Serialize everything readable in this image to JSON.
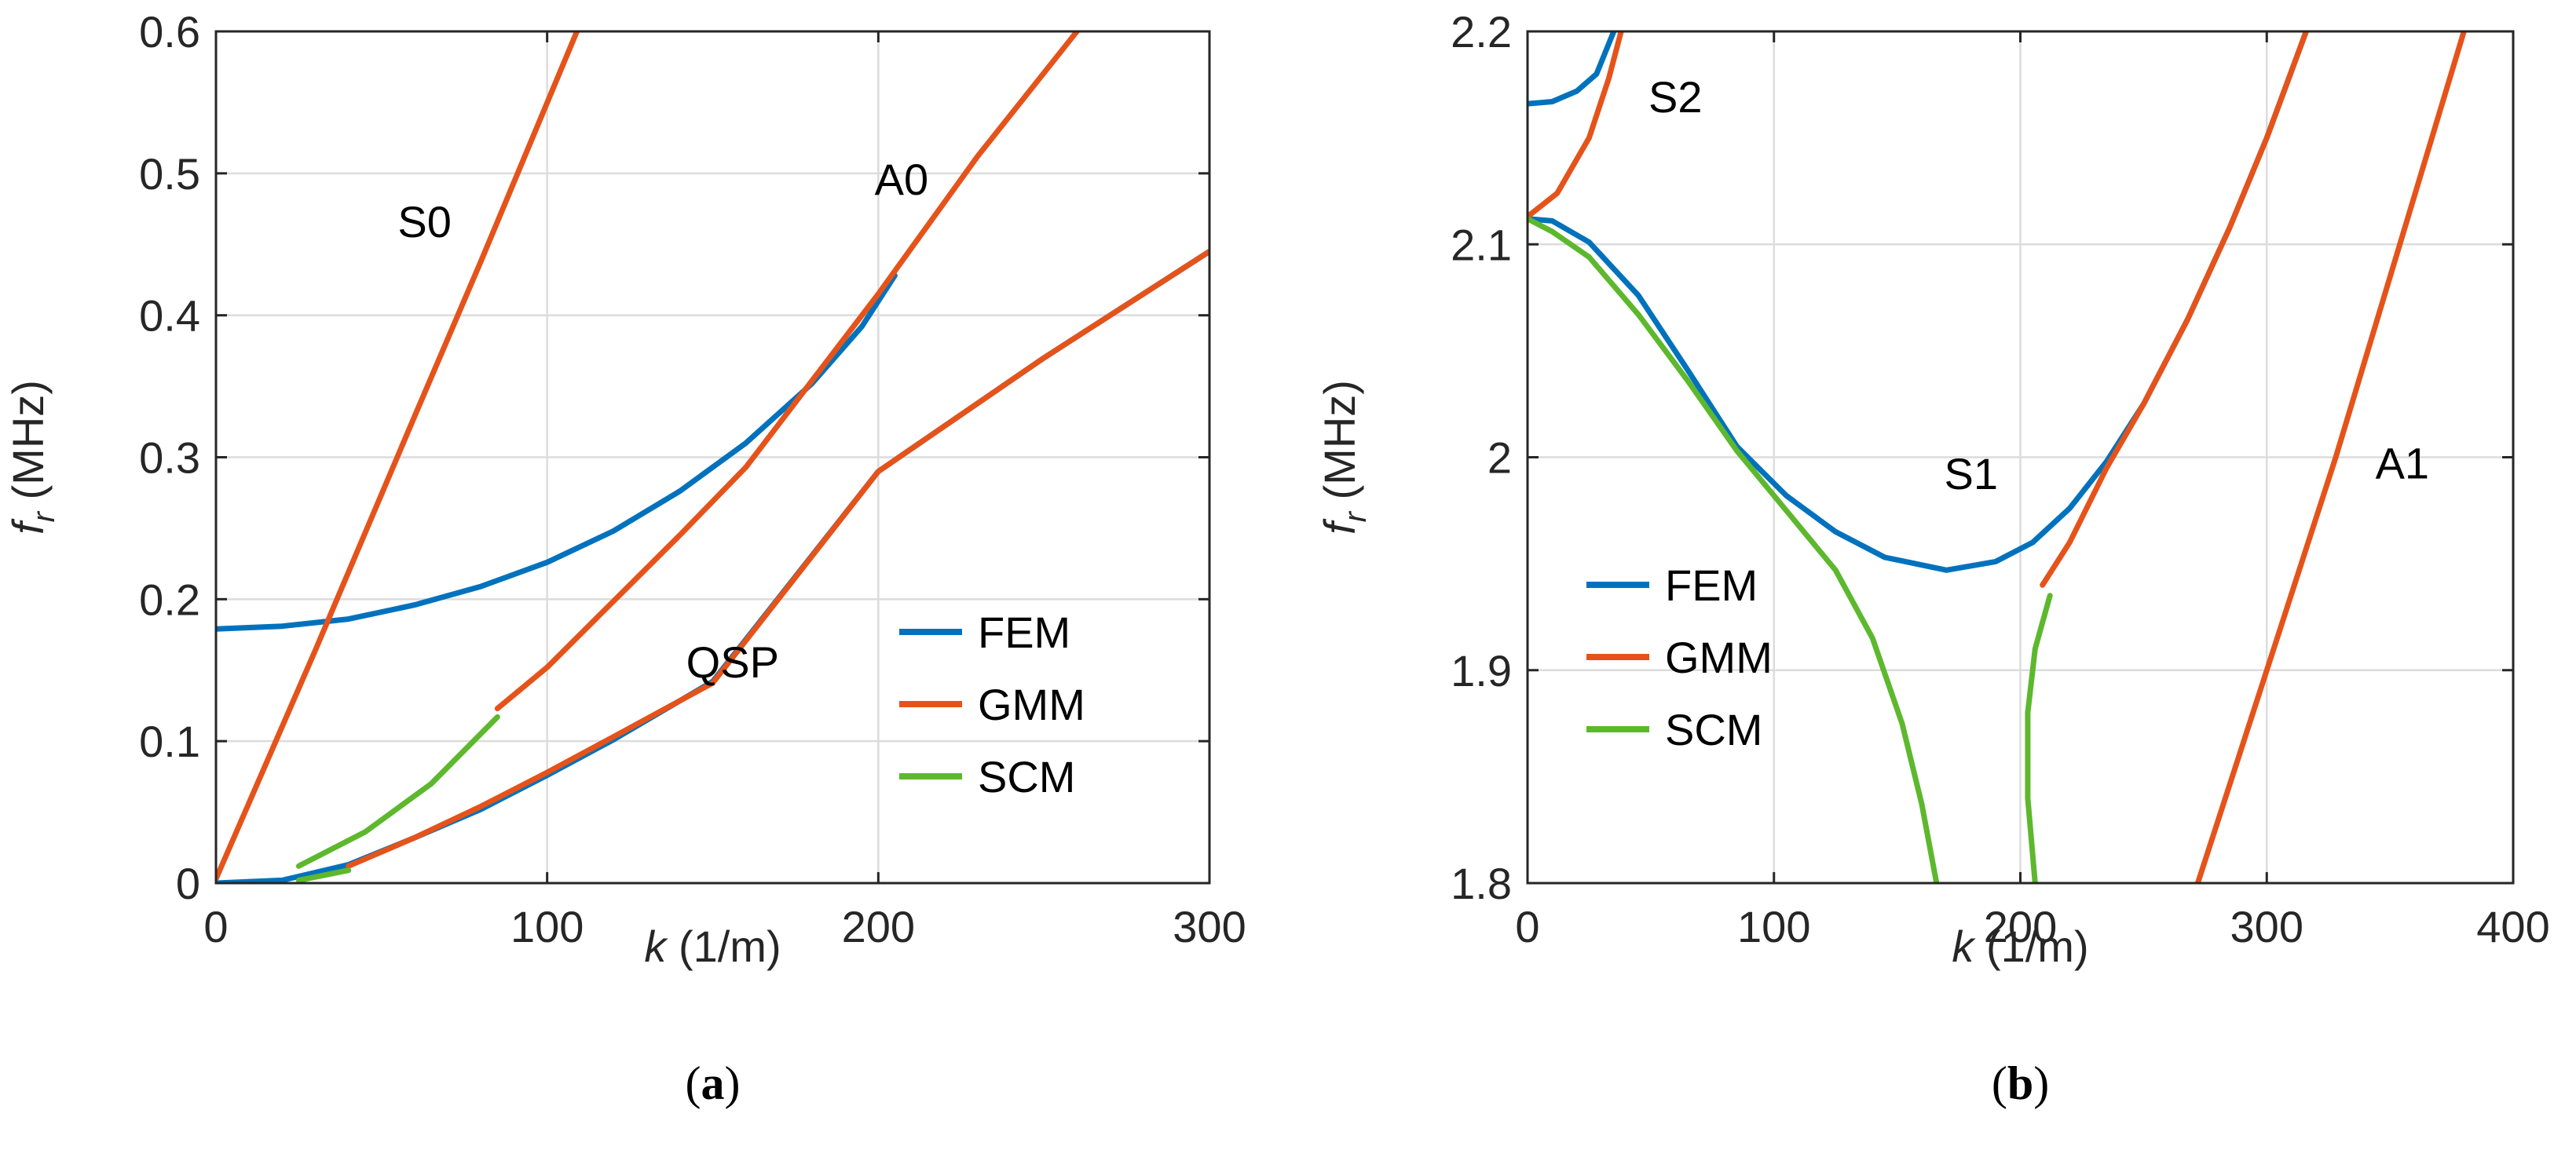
{
  "colors": {
    "FEM": "#0072BD",
    "GMM": "#E5531A",
    "SCM": "#5DB82D"
  },
  "chart_data": [
    {
      "id": "a",
      "type": "line",
      "panel_label": "a",
      "xlabel": {
        "var": "k",
        "unit": " (1/m)"
      },
      "ylabel": {
        "var": "f",
        "sub": "r",
        "unit": " (MHz)"
      },
      "xlim": [
        0,
        300
      ],
      "ylim": [
        0,
        0.6
      ],
      "xticks": [
        0,
        100,
        200,
        300
      ],
      "yticks": [
        0,
        0.1,
        0.2,
        0.3,
        0.4,
        0.5,
        0.6
      ],
      "xtick_labels": [
        "0",
        "100",
        "200",
        "300"
      ],
      "ytick_labels": [
        "0",
        "0.1",
        "0.2",
        "0.3",
        "0.4",
        "0.5",
        "0.6"
      ],
      "grid": true,
      "legend": {
        "position": "lower-right",
        "entries": [
          "FEM",
          "GMM",
          "SCM"
        ]
      },
      "annotations": [
        {
          "text": "S0",
          "x": 63,
          "y": 0.455
        },
        {
          "text": "A0",
          "x": 207,
          "y": 0.485
        },
        {
          "text": "QSP",
          "x": 156,
          "y": 0.145
        }
      ],
      "series": [
        {
          "name": "FEM",
          "mode": "S0-like",
          "points": [
            [
              0,
              0.179
            ],
            [
              20,
              0.181
            ],
            [
              40,
              0.186
            ],
            [
              60,
              0.196
            ],
            [
              80,
              0.209
            ],
            [
              100,
              0.226
            ],
            [
              120,
              0.248
            ],
            [
              140,
              0.276
            ],
            [
              160,
              0.31
            ],
            [
              180,
              0.352
            ],
            [
              195,
              0.392
            ],
            [
              205,
              0.428
            ]
          ]
        },
        {
          "name": "FEM",
          "mode": "QSP",
          "points": [
            [
              0,
              0
            ],
            [
              20,
              0.002
            ],
            [
              40,
              0.013
            ],
            [
              60,
              0.032
            ],
            [
              80,
              0.052
            ],
            [
              100,
              0.076
            ],
            [
              120,
              0.101
            ],
            [
              150,
              0.142
            ],
            [
              200,
              0.29
            ],
            [
              250,
              0.37
            ],
            [
              300,
              0.445
            ]
          ]
        },
        {
          "name": "GMM",
          "mode": "S0",
          "points": [
            [
              0,
              0.003
            ],
            [
              30,
              0.164
            ],
            [
              60,
              0.329
            ],
            [
              80,
              0.438
            ],
            [
              109,
              0.6
            ]
          ]
        },
        {
          "name": "GMM",
          "mode": "A0",
          "points": [
            [
              85,
              0.123
            ],
            [
              100,
              0.152
            ],
            [
              140,
              0.245
            ],
            [
              160,
              0.293
            ],
            [
              200,
              0.415
            ],
            [
              230,
              0.512
            ],
            [
              260,
              0.6
            ]
          ]
        },
        {
          "name": "GMM",
          "mode": "QSP",
          "points": [
            [
              40,
              0.012
            ],
            [
              60,
              0.032
            ],
            [
              80,
              0.054
            ],
            [
              100,
              0.078
            ],
            [
              120,
              0.103
            ],
            [
              150,
              0.141
            ],
            [
              200,
              0.29
            ],
            [
              250,
              0.37
            ],
            [
              300,
              0.445
            ]
          ]
        },
        {
          "name": "SCM",
          "mode": "A0",
          "points": [
            [
              25,
              0.012
            ],
            [
              45,
              0.036
            ],
            [
              65,
              0.07
            ],
            [
              85,
              0.117
            ]
          ]
        },
        {
          "name": "SCM",
          "mode": "QSP",
          "points": [
            [
              25,
              0.002
            ],
            [
              40,
              0.009
            ]
          ]
        }
      ]
    },
    {
      "id": "b",
      "type": "line",
      "panel_label": "b",
      "xlabel": {
        "var": "k",
        "unit": " (1/m)"
      },
      "ylabel": {
        "var": "f",
        "sub": "r",
        "unit": " (MHz)"
      },
      "xlim": [
        0,
        400
      ],
      "ylim": [
        1.8,
        2.2
      ],
      "xticks": [
        0,
        100,
        200,
        300,
        400
      ],
      "yticks": [
        1.8,
        1.9,
        2.0,
        2.1,
        2.2
      ],
      "xtick_labels": [
        "0",
        "100",
        "200",
        "300",
        "400"
      ],
      "ytick_labels": [
        "1.8",
        "1.9",
        "2",
        "2.1",
        "2.2"
      ],
      "grid": true,
      "legend": {
        "position": "lower-left",
        "entries": [
          "FEM",
          "GMM",
          "SCM"
        ]
      },
      "annotations": [
        {
          "text": "S2",
          "x": 60,
          "y": 2.162
        },
        {
          "text": "S1",
          "x": 180,
          "y": 1.985
        },
        {
          "text": "A1",
          "x": 355,
          "y": 1.99
        }
      ],
      "series": [
        {
          "name": "FEM",
          "mode": "S2",
          "points": [
            [
              0,
              2.166
            ],
            [
              10,
              2.167
            ],
            [
              20,
              2.172
            ],
            [
              28,
              2.18
            ],
            [
              35,
              2.2
            ]
          ]
        },
        {
          "name": "FEM",
          "mode": "S1",
          "points": [
            [
              0,
              2.112
            ],
            [
              10,
              2.111
            ],
            [
              25,
              2.101
            ],
            [
              45,
              2.076
            ],
            [
              65,
              2.041
            ],
            [
              85,
              2.005
            ],
            [
              105,
              1.982
            ],
            [
              125,
              1.965
            ],
            [
              145,
              1.953
            ],
            [
              170,
              1.947
            ],
            [
              190,
              1.951
            ],
            [
              205,
              1.96
            ],
            [
              220,
              1.976
            ],
            [
              235,
              1.998
            ],
            [
              250,
              2.025
            ],
            [
              268,
              2.065
            ],
            [
              285,
              2.108
            ],
            [
              300,
              2.15
            ],
            [
              316,
              2.2
            ]
          ]
        },
        {
          "name": "GMM",
          "mode": "S2",
          "points": [
            [
              0,
              2.113
            ],
            [
              12,
              2.124
            ],
            [
              25,
              2.15
            ],
            [
              33,
              2.178
            ],
            [
              38,
              2.2
            ]
          ]
        },
        {
          "name": "GMM",
          "mode": "S1",
          "points": [
            [
              209,
              1.94
            ],
            [
              220,
              1.96
            ],
            [
              235,
              1.995
            ],
            [
              250,
              2.025
            ],
            [
              268,
              2.065
            ],
            [
              285,
              2.108
            ],
            [
              300,
              2.15
            ],
            [
              316,
              2.2
            ]
          ]
        },
        {
          "name": "GMM",
          "mode": "A1",
          "points": [
            [
              272,
              1.8
            ],
            [
              300,
              1.9
            ],
            [
              328,
              2.0
            ],
            [
              354,
              2.1
            ],
            [
              380,
              2.2
            ]
          ]
        },
        {
          "name": "SCM",
          "mode": "S1-left",
          "points": [
            [
              0,
              2.112
            ],
            [
              10,
              2.106
            ],
            [
              25,
              2.094
            ],
            [
              45,
              2.067
            ],
            [
              65,
              2.036
            ],
            [
              85,
              2.003
            ],
            [
              105,
              1.975
            ],
            [
              125,
              1.947
            ],
            [
              140,
              1.915
            ],
            [
              152,
              1.875
            ],
            [
              160,
              1.837
            ],
            [
              166,
              1.8
            ]
          ]
        },
        {
          "name": "SCM",
          "mode": "S1-right",
          "points": [
            [
              206,
              1.8
            ],
            [
              203,
              1.84
            ],
            [
              203,
              1.88
            ],
            [
              206,
              1.91
            ],
            [
              212,
              1.935
            ]
          ]
        }
      ]
    }
  ]
}
